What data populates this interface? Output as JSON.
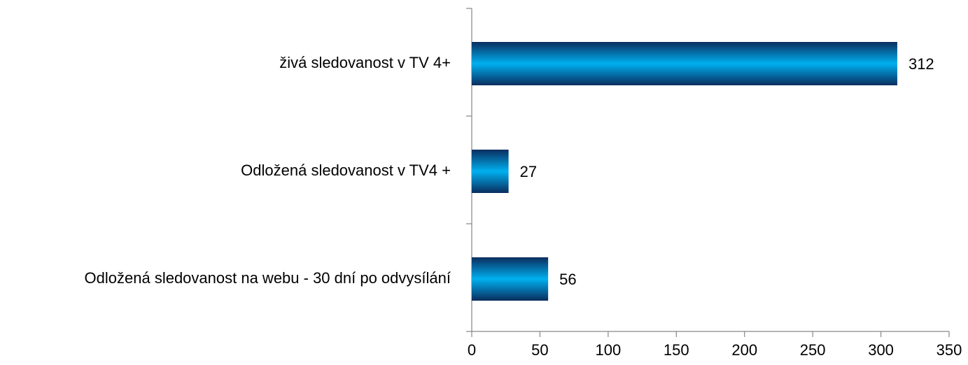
{
  "chart_data": {
    "type": "hbar",
    "categories": [
      "živá sledovanost v TV 4+",
      "Odložená sledovanost v TV4 +",
      "Odložená sledovanost na webu - 30 dní po odvysílání"
    ],
    "values": [
      312,
      27,
      56
    ],
    "color": "#00b0f0",
    "xlim": [
      0,
      350
    ],
    "xticks": [
      0,
      50,
      100,
      150,
      200,
      250,
      300,
      350
    ]
  }
}
